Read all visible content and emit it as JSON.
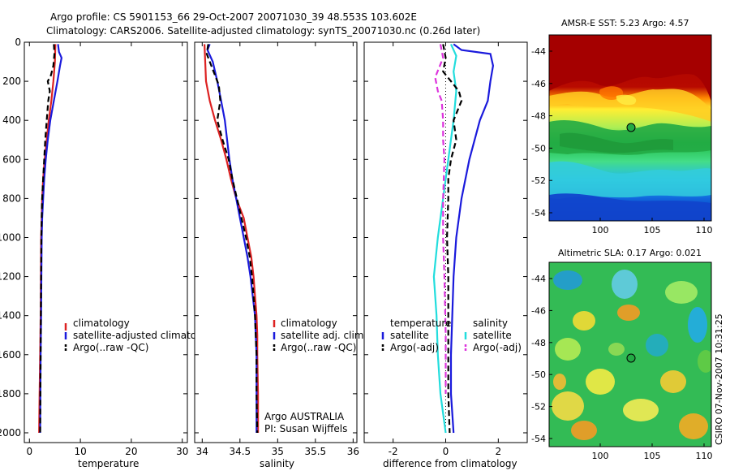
{
  "header": {
    "line1": "Argo profile: CS 5901153_66 29-Oct-2007 20071030_39 48.553S 103.602E",
    "line2": "Climatology: CARS2006. Satellite-adjusted climatology: synTS_20071030.nc (0.26d later)"
  },
  "side_stamp": "CSIRO 07-Nov-2007 10:31:25",
  "colors": {
    "red": "#dd2222",
    "blue": "#1a1adc",
    "black": "#000000",
    "cyan": "#22dddd",
    "magenta": "#dd33dd"
  },
  "chart_data": [
    {
      "type": "line",
      "xlabel": "temperature",
      "xlim": [
        -1,
        31
      ],
      "ylim": [
        2050,
        0
      ],
      "xticks": [
        0,
        10,
        20,
        30
      ],
      "xtick_labels": [
        "0",
        "10",
        "20",
        "30"
      ],
      "yticks": [
        0,
        200,
        400,
        600,
        800,
        1000,
        1200,
        1400,
        1600,
        1800,
        2000
      ],
      "ytick_labels": [
        "0",
        "200",
        "400",
        "600",
        "800",
        "1000",
        "1200",
        "1400",
        "1600",
        "1800",
        "2000"
      ],
      "legend": [
        {
          "label": "climatology",
          "color": "#dd2222",
          "dash": "solid"
        },
        {
          "label": "satellite-adjusted climatology",
          "color": "#1a1adc",
          "dash": "solid"
        },
        {
          "label": "Argo(..raw -QC)",
          "color": "#000000",
          "dash": "dashed"
        }
      ],
      "series": [
        {
          "color": "#dd2222",
          "dash": "solid",
          "points": [
            [
              5.1,
              10
            ],
            [
              5.0,
              100
            ],
            [
              4.7,
              200
            ],
            [
              4.3,
              300
            ],
            [
              3.8,
              400
            ],
            [
              3.4,
              500
            ],
            [
              3.0,
              600
            ],
            [
              2.7,
              700
            ],
            [
              2.5,
              800
            ],
            [
              2.4,
              900
            ],
            [
              2.3,
              1000
            ],
            [
              2.25,
              1200
            ],
            [
              2.2,
              1400
            ],
            [
              2.1,
              1600
            ],
            [
              2.0,
              1800
            ],
            [
              1.9,
              2000
            ]
          ]
        },
        {
          "color": "#1a1adc",
          "dash": "solid",
          "points": [
            [
              5.6,
              10
            ],
            [
              5.8,
              50
            ],
            [
              6.3,
              80
            ],
            [
              6.0,
              120
            ],
            [
              5.5,
              200
            ],
            [
              4.8,
              300
            ],
            [
              4.1,
              400
            ],
            [
              3.6,
              500
            ],
            [
              3.2,
              600
            ],
            [
              2.9,
              700
            ],
            [
              2.7,
              800
            ],
            [
              2.5,
              900
            ],
            [
              2.4,
              1000
            ],
            [
              2.35,
              1200
            ],
            [
              2.3,
              1400
            ],
            [
              2.2,
              1600
            ],
            [
              2.15,
              1800
            ],
            [
              2.1,
              2000
            ]
          ]
        },
        {
          "color": "#000000",
          "dash": "dashed",
          "points": [
            [
              4.8,
              10
            ],
            [
              4.9,
              60
            ],
            [
              4.7,
              120
            ],
            [
              4.2,
              170
            ],
            [
              3.6,
              200
            ],
            [
              4.0,
              250
            ],
            [
              3.7,
              300
            ],
            [
              3.4,
              400
            ],
            [
              3.1,
              500
            ],
            [
              2.9,
              600
            ],
            [
              2.7,
              700
            ],
            [
              2.5,
              800
            ],
            [
              2.4,
              900
            ],
            [
              2.35,
              1000
            ],
            [
              2.3,
              1200
            ],
            [
              2.25,
              1400
            ],
            [
              2.2,
              1600
            ],
            [
              2.15,
              1800
            ],
            [
              2.1,
              2000
            ]
          ]
        }
      ]
    },
    {
      "type": "line",
      "xlabel": "salinity",
      "xlim": [
        33.9,
        36.05
      ],
      "ylim": [
        2050,
        0
      ],
      "xticks": [
        34,
        34.5,
        35,
        35.5,
        36
      ],
      "xtick_labels": [
        "34",
        "34.5",
        "35",
        "35.5",
        "36"
      ],
      "legend": [
        {
          "label": "climatology",
          "color": "#dd2222",
          "dash": "solid"
        },
        {
          "label": "satellite adj. clim.",
          "color": "#1a1adc",
          "dash": "solid"
        },
        {
          "label": "Argo(..raw -QC)",
          "color": "#000000",
          "dash": "dashed"
        }
      ],
      "annotations": [
        "Argo AUSTRALIA",
        "PI: Susan Wijffels"
      ],
      "series": [
        {
          "color": "#dd2222",
          "dash": "solid",
          "points": [
            [
              34.03,
              10
            ],
            [
              34.04,
              100
            ],
            [
              34.05,
              200
            ],
            [
              34.1,
              300
            ],
            [
              34.17,
              400
            ],
            [
              34.25,
              500
            ],
            [
              34.32,
              600
            ],
            [
              34.38,
              700
            ],
            [
              34.45,
              800
            ],
            [
              34.55,
              900
            ],
            [
              34.6,
              1000
            ],
            [
              34.65,
              1100
            ],
            [
              34.68,
              1200
            ],
            [
              34.7,
              1300
            ],
            [
              34.72,
              1400
            ],
            [
              34.73,
              1500
            ],
            [
              34.73,
              1600
            ],
            [
              34.74,
              1800
            ],
            [
              34.74,
              2000
            ]
          ]
        },
        {
          "color": "#1a1adc",
          "dash": "solid",
          "points": [
            [
              34.1,
              10
            ],
            [
              34.07,
              40
            ],
            [
              34.14,
              100
            ],
            [
              34.2,
              200
            ],
            [
              34.25,
              300
            ],
            [
              34.3,
              400
            ],
            [
              34.33,
              500
            ],
            [
              34.36,
              600
            ],
            [
              34.4,
              700
            ],
            [
              34.45,
              800
            ],
            [
              34.5,
              900
            ],
            [
              34.55,
              1000
            ],
            [
              34.6,
              1100
            ],
            [
              34.64,
              1200
            ],
            [
              34.67,
              1300
            ],
            [
              34.7,
              1400
            ],
            [
              34.71,
              1500
            ],
            [
              34.72,
              1600
            ],
            [
              34.72,
              1800
            ],
            [
              34.72,
              2000
            ]
          ]
        },
        {
          "color": "#000000",
          "dash": "dashed",
          "points": [
            [
              34.08,
              10
            ],
            [
              34.06,
              60
            ],
            [
              34.1,
              100
            ],
            [
              34.15,
              150
            ],
            [
              34.22,
              220
            ],
            [
              34.24,
              300
            ],
            [
              34.2,
              400
            ],
            [
              34.27,
              500
            ],
            [
              34.35,
              600
            ],
            [
              34.4,
              700
            ],
            [
              34.46,
              800
            ],
            [
              34.52,
              900
            ],
            [
              34.58,
              1000
            ],
            [
              34.63,
              1100
            ],
            [
              34.66,
              1200
            ],
            [
              34.68,
              1300
            ],
            [
              34.7,
              1400
            ],
            [
              34.71,
              1500
            ],
            [
              34.72,
              1600
            ],
            [
              34.72,
              1800
            ],
            [
              34.73,
              2000
            ]
          ]
        }
      ]
    },
    {
      "type": "line",
      "xlabel": "difference from climatology",
      "xlim": [
        -3.1,
        3.1
      ],
      "ylim": [
        2050,
        0
      ],
      "xticks": [
        -2,
        0,
        2
      ],
      "xtick_labels": [
        "-2",
        "0",
        "2"
      ],
      "legend_left_title": "temperature",
      "legend_right_title": "salinity",
      "legend": [
        {
          "label": "satellite",
          "color": "#1a1adc",
          "dash": "solid",
          "group": "left"
        },
        {
          "label": "Argo(-adj)",
          "color": "#000000",
          "dash": "dashed",
          "group": "left"
        },
        {
          "label": "satellite",
          "color": "#22dddd",
          "dash": "solid",
          "group": "right"
        },
        {
          "label": "Argo(-adj)",
          "color": "#dd33dd",
          "dash": "dashed",
          "group": "right"
        }
      ],
      "series": [
        {
          "color": "#1a1adc",
          "dash": "solid",
          "points": [
            [
              0.3,
              10
            ],
            [
              0.6,
              40
            ],
            [
              1.7,
              60
            ],
            [
              1.8,
              120
            ],
            [
              1.7,
              200
            ],
            [
              1.6,
              300
            ],
            [
              1.3,
              400
            ],
            [
              0.9,
              600
            ],
            [
              0.6,
              800
            ],
            [
              0.4,
              1000
            ],
            [
              0.3,
              1200
            ],
            [
              0.25,
              1400
            ],
            [
              0.2,
              1600
            ],
            [
              0.2,
              1800
            ],
            [
              0.3,
              2000
            ]
          ]
        },
        {
          "color": "#000000",
          "dash": "dotted",
          "points": [
            [
              0,
              0
            ],
            [
              0,
              2000
            ]
          ]
        },
        {
          "color": "#22dddd",
          "dash": "solid",
          "points": [
            [
              0.2,
              10
            ],
            [
              0.4,
              70
            ],
            [
              0.3,
              150
            ],
            [
              0.4,
              250
            ],
            [
              0.3,
              400
            ],
            [
              0.1,
              600
            ],
            [
              -0.1,
              800
            ],
            [
              -0.3,
              1000
            ],
            [
              -0.45,
              1200
            ],
            [
              -0.35,
              1400
            ],
            [
              -0.3,
              1600
            ],
            [
              -0.2,
              1800
            ],
            [
              0.0,
              2000
            ]
          ]
        },
        {
          "color": "#000000",
          "dash": "dashed",
          "points": [
            [
              -0.1,
              10
            ],
            [
              0.0,
              80
            ],
            [
              -0.1,
              150
            ],
            [
              0.2,
              200
            ],
            [
              0.5,
              250
            ],
            [
              0.6,
              300
            ],
            [
              0.3,
              400
            ],
            [
              0.4,
              500
            ],
            [
              0.2,
              600
            ],
            [
              0.1,
              700
            ],
            [
              0.1,
              800
            ],
            [
              0.05,
              1000
            ],
            [
              0.1,
              1200
            ],
            [
              0.1,
              1500
            ],
            [
              0.1,
              1800
            ],
            [
              0.15,
              2000
            ]
          ]
        },
        {
          "color": "#dd33dd",
          "dash": "dashed",
          "points": [
            [
              -0.2,
              10
            ],
            [
              -0.1,
              80
            ],
            [
              -0.4,
              180
            ],
            [
              -0.3,
              250
            ],
            [
              -0.15,
              300
            ],
            [
              -0.1,
              400
            ],
            [
              -0.1,
              500
            ],
            [
              -0.05,
              600
            ],
            [
              -0.1,
              800
            ],
            [
              -0.1,
              1000
            ],
            [
              -0.05,
              1200
            ],
            [
              0.0,
              1500
            ],
            [
              0.0,
              1800
            ]
          ]
        }
      ]
    }
  ],
  "maps": [
    {
      "title": "AMSR-E SST: 5.23 Argo: 4.57",
      "ytick_labels": [
        "-44",
        "-46",
        "-48",
        "-50",
        "-52",
        "-54"
      ],
      "xtick_labels": [
        "100",
        "105",
        "110"
      ],
      "marker": {
        "lon": 103.6,
        "lat": -48.55
      }
    },
    {
      "title": "Altimetric SLA: 0.17 Argo: 0.021",
      "ytick_labels": [
        "-44",
        "-46",
        "-48",
        "-50",
        "-52",
        "-54"
      ],
      "xtick_labels": [
        "100",
        "105",
        "110"
      ],
      "marker": {
        "lon": 103.6,
        "lat": -48.55
      }
    }
  ]
}
